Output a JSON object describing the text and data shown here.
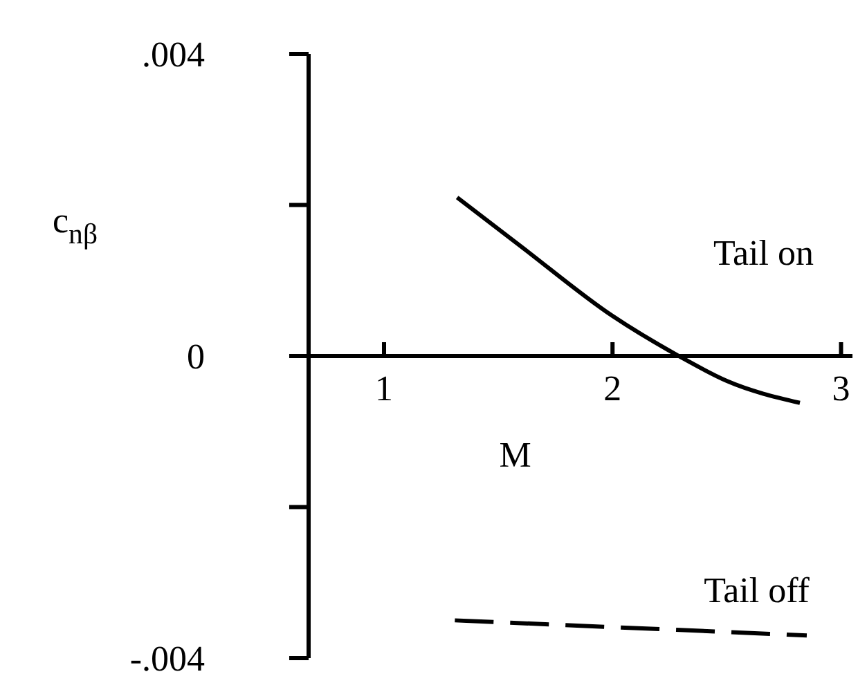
{
  "chart_data": {
    "type": "line",
    "xlabel": "M",
    "ylabel": "c$_{nβ}$",
    "xlim": [
      0.67,
      3.05
    ],
    "xticks": [
      1,
      2,
      3
    ],
    "ylim": [
      -0.004,
      0.004
    ],
    "yticks": [
      {
        "value": 0.004,
        "label": ".004"
      },
      {
        "value": 0.002,
        "label": null
      },
      0,
      {
        "value": -0.002,
        "label": null
      },
      {
        "value": -0.004,
        "label": "-.004"
      }
    ],
    "marker": "none",
    "series": [
      {
        "name": "Tail on",
        "color": "#000000",
        "line_style": "solid",
        "x": [
          1.32,
          1.6,
          2.0,
          2.29,
          2.5,
          2.82
        ],
        "values": [
          0.0021,
          0.00145,
          0.00053,
          0,
          -0.00033,
          -0.00062
        ]
      },
      {
        "name": "Tail off",
        "color": "#000000",
        "line_style": "dashed",
        "x": [
          1.31,
          2.85
        ],
        "values": [
          -0.0035,
          -0.0037
        ]
      }
    ]
  }
}
